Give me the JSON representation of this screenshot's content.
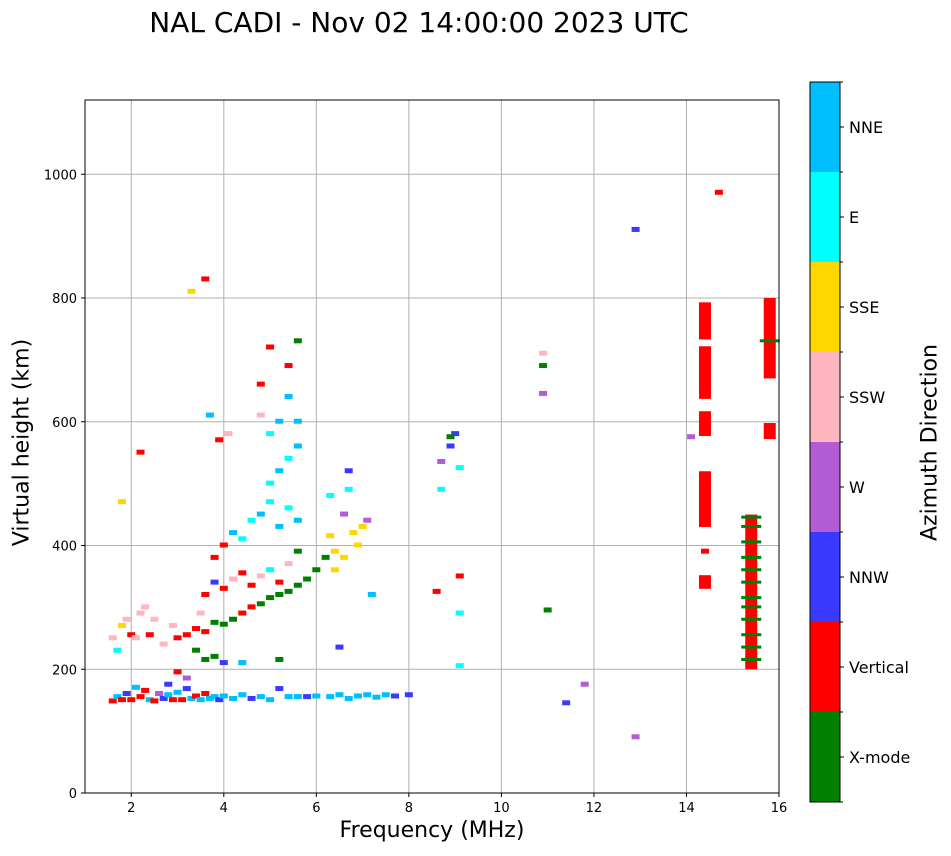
{
  "chart_data": {
    "type": "scatter",
    "title": "NAL CADI - Nov 02 14:00:00 2023 UTC",
    "xlabel": "Frequency (MHz)",
    "ylabel": "Virtual height (km)",
    "xlim": [
      1,
      16
    ],
    "ylim": [
      0,
      1120
    ],
    "xticks": [
      2,
      4,
      6,
      8,
      10,
      12,
      14,
      16
    ],
    "yticks": [
      0,
      200,
      400,
      600,
      800,
      1000
    ],
    "grid": true,
    "colorbar": {
      "label": "Azimuth Direction",
      "categories": [
        {
          "name": "X-mode",
          "color": "#008000"
        },
        {
          "name": "Vertical",
          "color": "#ff0000"
        },
        {
          "name": "NNW",
          "color": "#3a3aff"
        },
        {
          "name": "W",
          "color": "#b45cd6"
        },
        {
          "name": "SSW",
          "color": "#ffb6c1"
        },
        {
          "name": "SSE",
          "color": "#ffd700"
        },
        {
          "name": "E",
          "color": "#00ffff"
        },
        {
          "name": "NNE",
          "color": "#00bfff"
        }
      ]
    },
    "points": [
      {
        "f": 1.6,
        "h": 148,
        "c": "Vertical"
      },
      {
        "f": 1.7,
        "h": 155,
        "c": "NNE"
      },
      {
        "f": 1.8,
        "h": 150,
        "c": "Vertical"
      },
      {
        "f": 1.9,
        "h": 160,
        "c": "NNW"
      },
      {
        "f": 2.0,
        "h": 150,
        "c": "Vertical"
      },
      {
        "f": 2.1,
        "h": 170,
        "c": "NNE"
      },
      {
        "f": 2.2,
        "h": 155,
        "c": "Vertical"
      },
      {
        "f": 2.3,
        "h": 165,
        "c": "Vertical"
      },
      {
        "f": 2.4,
        "h": 150,
        "c": "NNE"
      },
      {
        "f": 2.5,
        "h": 148,
        "c": "Vertical"
      },
      {
        "f": 2.6,
        "h": 160,
        "c": "W"
      },
      {
        "f": 2.7,
        "h": 152,
        "c": "NNW"
      },
      {
        "f": 2.8,
        "h": 158,
        "c": "NNE"
      },
      {
        "f": 2.9,
        "h": 150,
        "c": "Vertical"
      },
      {
        "f": 3.0,
        "h": 162,
        "c": "NNE"
      },
      {
        "f": 3.1,
        "h": 150,
        "c": "Vertical"
      },
      {
        "f": 3.2,
        "h": 168,
        "c": "NNW"
      },
      {
        "f": 3.3,
        "h": 152,
        "c": "NNE"
      },
      {
        "f": 3.4,
        "h": 156,
        "c": "Vertical"
      },
      {
        "f": 3.5,
        "h": 150,
        "c": "NNE"
      },
      {
        "f": 3.6,
        "h": 160,
        "c": "Vertical"
      },
      {
        "f": 3.7,
        "h": 152,
        "c": "NNE"
      },
      {
        "f": 3.8,
        "h": 155,
        "c": "NNE"
      },
      {
        "f": 3.9,
        "h": 150,
        "c": "NNW"
      },
      {
        "f": 4.0,
        "h": 156,
        "c": "NNE"
      },
      {
        "f": 4.2,
        "h": 152,
        "c": "NNE"
      },
      {
        "f": 4.4,
        "h": 158,
        "c": "NNE"
      },
      {
        "f": 4.6,
        "h": 152,
        "c": "NNW"
      },
      {
        "f": 4.8,
        "h": 155,
        "c": "NNE"
      },
      {
        "f": 5.0,
        "h": 150,
        "c": "NNE"
      },
      {
        "f": 5.2,
        "h": 168,
        "c": "NNW"
      },
      {
        "f": 5.4,
        "h": 155,
        "c": "NNE"
      },
      {
        "f": 5.6,
        "h": 155,
        "c": "NNE"
      },
      {
        "f": 5.8,
        "h": 155,
        "c": "NNW"
      },
      {
        "f": 6.0,
        "h": 156,
        "c": "NNE"
      },
      {
        "f": 6.3,
        "h": 155,
        "c": "NNE"
      },
      {
        "f": 6.5,
        "h": 158,
        "c": "NNE"
      },
      {
        "f": 6.7,
        "h": 152,
        "c": "NNE"
      },
      {
        "f": 6.9,
        "h": 156,
        "c": "NNE"
      },
      {
        "f": 7.1,
        "h": 158,
        "c": "NNE"
      },
      {
        "f": 7.3,
        "h": 154,
        "c": "NNE"
      },
      {
        "f": 7.5,
        "h": 158,
        "c": "NNE"
      },
      {
        "f": 7.7,
        "h": 156,
        "c": "NNW"
      },
      {
        "f": 8.0,
        "h": 158,
        "c": "NNW"
      },
      {
        "f": 1.6,
        "h": 250,
        "c": "SSW"
      },
      {
        "f": 1.7,
        "h": 230,
        "c": "E"
      },
      {
        "f": 1.8,
        "h": 270,
        "c": "SSE"
      },
      {
        "f": 1.9,
        "h": 280,
        "c": "SSW"
      },
      {
        "f": 2.0,
        "h": 255,
        "c": "Vertical"
      },
      {
        "f": 2.1,
        "h": 250,
        "c": "SSW"
      },
      {
        "f": 2.2,
        "h": 290,
        "c": "SSW"
      },
      {
        "f": 2.3,
        "h": 300,
        "c": "SSW"
      },
      {
        "f": 2.4,
        "h": 255,
        "c": "Vertical"
      },
      {
        "f": 2.5,
        "h": 280,
        "c": "SSW"
      },
      {
        "f": 2.7,
        "h": 240,
        "c": "SSW"
      },
      {
        "f": 2.9,
        "h": 270,
        "c": "SSW"
      },
      {
        "f": 3.0,
        "h": 250,
        "c": "Vertical"
      },
      {
        "f": 3.2,
        "h": 255,
        "c": "Vertical"
      },
      {
        "f": 3.4,
        "h": 265,
        "c": "Vertical"
      },
      {
        "f": 3.5,
        "h": 290,
        "c": "SSW"
      },
      {
        "f": 3.6,
        "h": 260,
        "c": "Vertical"
      },
      {
        "f": 3.8,
        "h": 275,
        "c": "X-mode"
      },
      {
        "f": 4.0,
        "h": 272,
        "c": "X-mode"
      },
      {
        "f": 4.2,
        "h": 280,
        "c": "X-mode"
      },
      {
        "f": 4.4,
        "h": 290,
        "c": "Vertical"
      },
      {
        "f": 4.6,
        "h": 300,
        "c": "Vertical"
      },
      {
        "f": 4.8,
        "h": 305,
        "c": "X-mode"
      },
      {
        "f": 5.0,
        "h": 315,
        "c": "X-mode"
      },
      {
        "f": 5.2,
        "h": 320,
        "c": "X-mode"
      },
      {
        "f": 5.4,
        "h": 325,
        "c": "X-mode"
      },
      {
        "f": 5.6,
        "h": 335,
        "c": "X-mode"
      },
      {
        "f": 5.8,
        "h": 345,
        "c": "X-mode"
      },
      {
        "f": 6.0,
        "h": 360,
        "c": "X-mode"
      },
      {
        "f": 6.2,
        "h": 380,
        "c": "X-mode"
      },
      {
        "f": 6.4,
        "h": 390,
        "c": "SSE"
      },
      {
        "f": 3.6,
        "h": 320,
        "c": "Vertical"
      },
      {
        "f": 3.8,
        "h": 340,
        "c": "NNW"
      },
      {
        "f": 4.0,
        "h": 330,
        "c": "Vertical"
      },
      {
        "f": 4.2,
        "h": 345,
        "c": "SSW"
      },
      {
        "f": 4.4,
        "h": 355,
        "c": "Vertical"
      },
      {
        "f": 4.6,
        "h": 335,
        "c": "Vertical"
      },
      {
        "f": 4.8,
        "h": 350,
        "c": "SSW"
      },
      {
        "f": 5.0,
        "h": 360,
        "c": "E"
      },
      {
        "f": 5.2,
        "h": 340,
        "c": "Vertical"
      },
      {
        "f": 5.4,
        "h": 370,
        "c": "SSW"
      },
      {
        "f": 5.6,
        "h": 390,
        "c": "X-mode"
      },
      {
        "f": 3.4,
        "h": 230,
        "c": "X-mode"
      },
      {
        "f": 3.6,
        "h": 215,
        "c": "X-mode"
      },
      {
        "f": 3.8,
        "h": 220,
        "c": "X-mode"
      },
      {
        "f": 4.0,
        "h": 210,
        "c": "NNW"
      },
      {
        "f": 4.4,
        "h": 210,
        "c": "NNE"
      },
      {
        "f": 5.2,
        "h": 215,
        "c": "X-mode"
      },
      {
        "f": 3.0,
        "h": 195,
        "c": "Vertical"
      },
      {
        "f": 3.2,
        "h": 185,
        "c": "W"
      },
      {
        "f": 2.8,
        "h": 175,
        "c": "NNW"
      },
      {
        "f": 3.8,
        "h": 380,
        "c": "Vertical"
      },
      {
        "f": 4.0,
        "h": 400,
        "c": "Vertical"
      },
      {
        "f": 4.2,
        "h": 420,
        "c": "NNE"
      },
      {
        "f": 4.4,
        "h": 410,
        "c": "E"
      },
      {
        "f": 4.6,
        "h": 440,
        "c": "E"
      },
      {
        "f": 4.8,
        "h": 450,
        "c": "NNE"
      },
      {
        "f": 5.0,
        "h": 470,
        "c": "E"
      },
      {
        "f": 5.2,
        "h": 430,
        "c": "NNE"
      },
      {
        "f": 5.4,
        "h": 460,
        "c": "E"
      },
      {
        "f": 5.6,
        "h": 440,
        "c": "NNE"
      },
      {
        "f": 5.0,
        "h": 500,
        "c": "E"
      },
      {
        "f": 5.2,
        "h": 520,
        "c": "NNE"
      },
      {
        "f": 5.4,
        "h": 540,
        "c": "E"
      },
      {
        "f": 5.6,
        "h": 560,
        "c": "NNE"
      },
      {
        "f": 5.0,
        "h": 580,
        "c": "E"
      },
      {
        "f": 5.2,
        "h": 600,
        "c": "NNE"
      },
      {
        "f": 5.4,
        "h": 640,
        "c": "NNE"
      },
      {
        "f": 5.6,
        "h": 600,
        "c": "NNE"
      },
      {
        "f": 4.8,
        "h": 610,
        "c": "SSW"
      },
      {
        "f": 3.7,
        "h": 610,
        "c": "NNE"
      },
      {
        "f": 3.9,
        "h": 570,
        "c": "Vertical"
      },
      {
        "f": 4.1,
        "h": 580,
        "c": "SSW"
      },
      {
        "f": 5.4,
        "h": 690,
        "c": "Vertical"
      },
      {
        "f": 5.0,
        "h": 720,
        "c": "Vertical"
      },
      {
        "f": 5.6,
        "h": 730,
        "c": "X-mode"
      },
      {
        "f": 4.8,
        "h": 660,
        "c": "Vertical"
      },
      {
        "f": 3.6,
        "h": 830,
        "c": "Vertical"
      },
      {
        "f": 3.3,
        "h": 810,
        "c": "SSE"
      },
      {
        "f": 1.8,
        "h": 470,
        "c": "SSE"
      },
      {
        "f": 2.2,
        "h": 550,
        "c": "Vertical"
      },
      {
        "f": 6.3,
        "h": 480,
        "c": "E"
      },
      {
        "f": 6.6,
        "h": 450,
        "c": "W"
      },
      {
        "f": 6.7,
        "h": 520,
        "c": "NNW"
      },
      {
        "f": 6.8,
        "h": 420,
        "c": "SSE"
      },
      {
        "f": 6.9,
        "h": 400,
        "c": "SSE"
      },
      {
        "f": 7.0,
        "h": 430,
        "c": "SSE"
      },
      {
        "f": 6.6,
        "h": 380,
        "c": "SSE"
      },
      {
        "f": 6.4,
        "h": 360,
        "c": "SSE"
      },
      {
        "f": 7.1,
        "h": 440,
        "c": "W"
      },
      {
        "f": 6.7,
        "h": 490,
        "c": "E"
      },
      {
        "f": 6.3,
        "h": 415,
        "c": "SSE"
      },
      {
        "f": 7.2,
        "h": 320,
        "c": "NNE"
      },
      {
        "f": 6.5,
        "h": 235,
        "c": "NNW"
      },
      {
        "f": 8.6,
        "h": 325,
        "c": "Vertical"
      },
      {
        "f": 9.1,
        "h": 350,
        "c": "Vertical"
      },
      {
        "f": 8.7,
        "h": 490,
        "c": "E"
      },
      {
        "f": 8.9,
        "h": 560,
        "c": "NNW"
      },
      {
        "f": 9.0,
        "h": 580,
        "c": "NNW"
      },
      {
        "f": 8.9,
        "h": 575,
        "c": "X-mode"
      },
      {
        "f": 8.7,
        "h": 535,
        "c": "W"
      },
      {
        "f": 9.1,
        "h": 525,
        "c": "E"
      },
      {
        "f": 9.1,
        "h": 290,
        "c": "E"
      },
      {
        "f": 9.1,
        "h": 205,
        "c": "E"
      },
      {
        "f": 10.9,
        "h": 710,
        "c": "SSW"
      },
      {
        "f": 10.9,
        "h": 690,
        "c": "X-mode"
      },
      {
        "f": 10.9,
        "h": 645,
        "c": "W"
      },
      {
        "f": 11.0,
        "h": 295,
        "c": "X-mode"
      },
      {
        "f": 11.4,
        "h": 145,
        "c": "NNW"
      },
      {
        "f": 11.8,
        "h": 175,
        "c": "W"
      },
      {
        "f": 12.9,
        "h": 910,
        "c": "NNW"
      },
      {
        "f": 12.9,
        "h": 90,
        "c": "W"
      },
      {
        "f": 14.1,
        "h": 575,
        "c": "W"
      },
      {
        "f": 14.4,
        "h": 390,
        "c": "Vertical"
      },
      {
        "f": 14.7,
        "h": 970,
        "c": "Vertical"
      }
    ],
    "segments": [
      {
        "f": 14.4,
        "h0": 733,
        "h1": 793,
        "c": "Vertical"
      },
      {
        "f": 14.4,
        "h0": 637,
        "h1": 722,
        "c": "Vertical"
      },
      {
        "f": 14.4,
        "h0": 577,
        "h1": 617,
        "c": "Vertical"
      },
      {
        "f": 14.4,
        "h0": 430,
        "h1": 520,
        "c": "Vertical"
      },
      {
        "f": 14.4,
        "h0": 330,
        "h1": 352,
        "c": "Vertical"
      },
      {
        "f": 15.8,
        "h0": 670,
        "h1": 800,
        "c": "Vertical"
      },
      {
        "f": 15.8,
        "h0": 572,
        "h1": 598,
        "c": "Vertical"
      },
      {
        "f": 15.4,
        "h0": 200,
        "h1": 450,
        "c": "Vertical"
      }
    ],
    "stripes": [
      {
        "f": 15.4,
        "h": 445,
        "c": "X-mode"
      },
      {
        "f": 15.4,
        "h": 430,
        "c": "X-mode"
      },
      {
        "f": 15.4,
        "h": 405,
        "c": "X-mode"
      },
      {
        "f": 15.4,
        "h": 380,
        "c": "X-mode"
      },
      {
        "f": 15.4,
        "h": 360,
        "c": "X-mode"
      },
      {
        "f": 15.4,
        "h": 340,
        "c": "X-mode"
      },
      {
        "f": 15.4,
        "h": 315,
        "c": "X-mode"
      },
      {
        "f": 15.4,
        "h": 300,
        "c": "X-mode"
      },
      {
        "f": 15.4,
        "h": 280,
        "c": "X-mode"
      },
      {
        "f": 15.4,
        "h": 255,
        "c": "X-mode"
      },
      {
        "f": 15.4,
        "h": 235,
        "c": "X-mode"
      },
      {
        "f": 15.4,
        "h": 215,
        "c": "X-mode"
      },
      {
        "f": 15.8,
        "h": 730,
        "c": "X-mode"
      }
    ]
  }
}
